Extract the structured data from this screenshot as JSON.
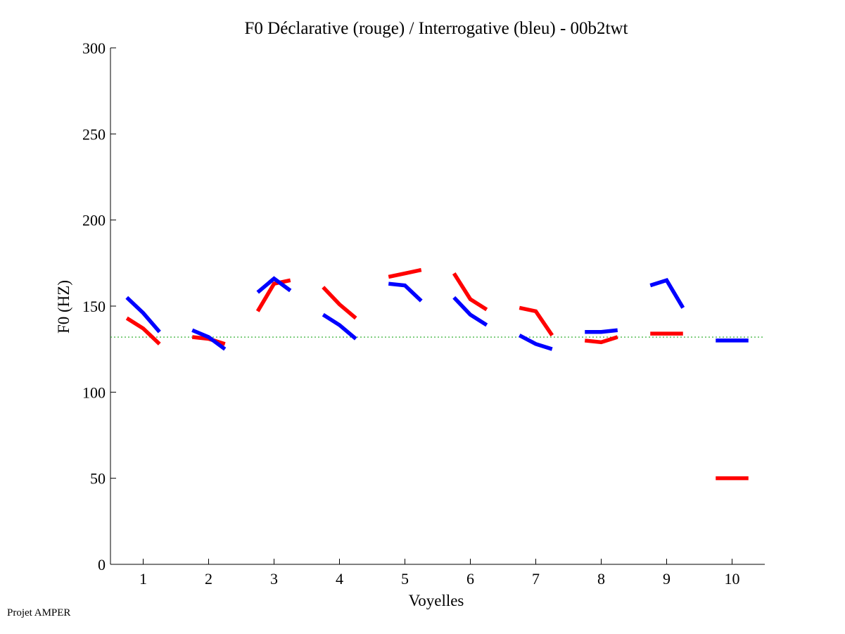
{
  "footer": {
    "label": "Projet AMPER"
  },
  "chart_data": {
    "type": "line",
    "title": "F0 Déclarative (rouge) / Interrogative (bleu) - 00b2twt",
    "xlabel": "Voyelles",
    "ylabel": "F0 (HZ)",
    "xlim": [
      0.5,
      10.5
    ],
    "ylim": [
      0,
      300
    ],
    "xticks": [
      1,
      2,
      3,
      4,
      5,
      6,
      7,
      8,
      9,
      10
    ],
    "yticks": [
      0,
      50,
      100,
      150,
      200,
      250,
      300
    ],
    "reference_line": {
      "y": 132,
      "color": "#22aa22",
      "style": "dotted"
    },
    "series": [
      {
        "name": "Déclarative",
        "color": "#ff0000",
        "segments": [
          {
            "vowel": 1,
            "points": [
              [
                -0.25,
                143
              ],
              [
                0,
                137
              ],
              [
                0.25,
                128
              ]
            ]
          },
          {
            "vowel": 2,
            "points": [
              [
                -0.25,
                132
              ],
              [
                0,
                131
              ],
              [
                0.25,
                128
              ]
            ]
          },
          {
            "vowel": 3,
            "points": [
              [
                -0.25,
                147
              ],
              [
                0,
                163
              ],
              [
                0.25,
                165
              ]
            ]
          },
          {
            "vowel": 4,
            "points": [
              [
                -0.25,
                161
              ],
              [
                0,
                151
              ],
              [
                0.25,
                143
              ]
            ]
          },
          {
            "vowel": 5,
            "points": [
              [
                -0.25,
                167
              ],
              [
                0,
                169
              ],
              [
                0.25,
                171
              ]
            ]
          },
          {
            "vowel": 6,
            "points": [
              [
                -0.25,
                169
              ],
              [
                0,
                154
              ],
              [
                0.25,
                148
              ]
            ]
          },
          {
            "vowel": 7,
            "points": [
              [
                -0.25,
                149
              ],
              [
                0,
                147
              ],
              [
                0.25,
                133
              ]
            ]
          },
          {
            "vowel": 8,
            "points": [
              [
                -0.25,
                130
              ],
              [
                0,
                129
              ],
              [
                0.25,
                132
              ]
            ]
          },
          {
            "vowel": 9,
            "points": [
              [
                -0.25,
                134
              ],
              [
                0,
                134
              ],
              [
                0.25,
                134
              ]
            ]
          },
          {
            "vowel": 10,
            "points": [
              [
                -0.25,
                50
              ],
              [
                0,
                50
              ],
              [
                0.25,
                50
              ]
            ]
          }
        ]
      },
      {
        "name": "Interrogative",
        "color": "#0000ff",
        "segments": [
          {
            "vowel": 1,
            "points": [
              [
                -0.25,
                155
              ],
              [
                0,
                146
              ],
              [
                0.25,
                135
              ]
            ]
          },
          {
            "vowel": 2,
            "points": [
              [
                -0.25,
                136
              ],
              [
                0,
                132
              ],
              [
                0.25,
                125
              ]
            ]
          },
          {
            "vowel": 3,
            "points": [
              [
                -0.25,
                158
              ],
              [
                0,
                166
              ],
              [
                0.25,
                159
              ]
            ]
          },
          {
            "vowel": 4,
            "points": [
              [
                -0.25,
                145
              ],
              [
                0,
                139
              ],
              [
                0.25,
                131
              ]
            ]
          },
          {
            "vowel": 5,
            "points": [
              [
                -0.25,
                163
              ],
              [
                0,
                162
              ],
              [
                0.25,
                153
              ]
            ]
          },
          {
            "vowel": 6,
            "points": [
              [
                -0.25,
                155
              ],
              [
                0,
                145
              ],
              [
                0.25,
                139
              ]
            ]
          },
          {
            "vowel": 7,
            "points": [
              [
                -0.25,
                133
              ],
              [
                0,
                128
              ],
              [
                0.25,
                125
              ]
            ]
          },
          {
            "vowel": 8,
            "points": [
              [
                -0.25,
                135
              ],
              [
                0,
                135
              ],
              [
                0.25,
                136
              ]
            ]
          },
          {
            "vowel": 9,
            "points": [
              [
                -0.25,
                162
              ],
              [
                0,
                165
              ],
              [
                0.25,
                149
              ]
            ]
          },
          {
            "vowel": 10,
            "points": [
              [
                -0.25,
                130
              ],
              [
                0,
                130
              ],
              [
                0.25,
                130
              ]
            ]
          }
        ]
      }
    ]
  }
}
